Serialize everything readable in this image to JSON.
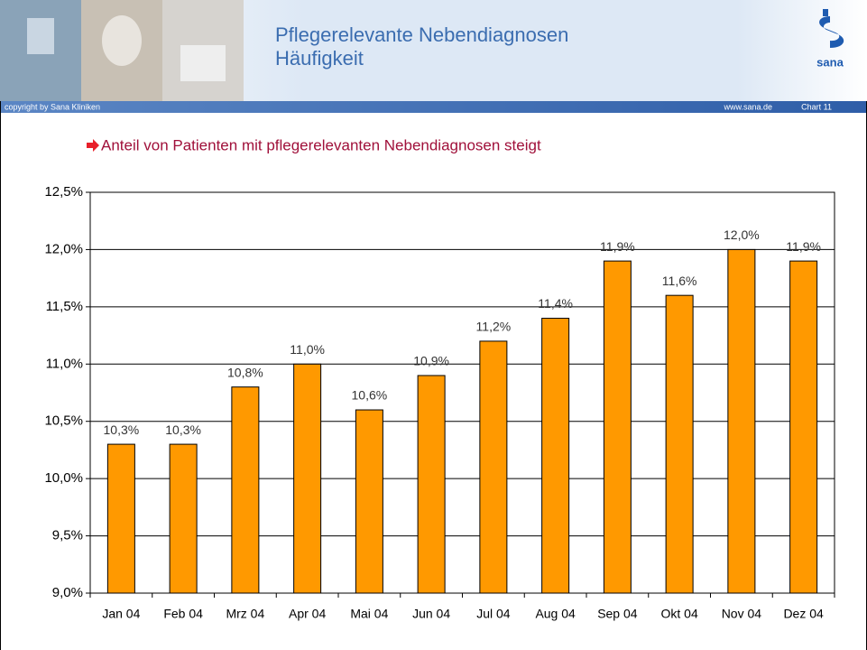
{
  "header": {
    "title": [
      "Pflegerelevante Nebendiagnosen",
      "Häufigkeit"
    ],
    "copyright": "copyright by Sana Kliniken",
    "url": "www.sana.de",
    "chart_number": "Chart 11",
    "logo_text": "sana"
  },
  "chart_data": {
    "type": "bar",
    "title": "Anteil von Patienten mit pflegerelevanten Nebendiagnosen steigt",
    "categories": [
      "Jan 04",
      "Feb 04",
      "Mrz 04",
      "Apr 04",
      "Mai 04",
      "Jun 04",
      "Jul 04",
      "Aug 04",
      "Sep 04",
      "Okt 04",
      "Nov 04",
      "Dez 04"
    ],
    "values": [
      10.3,
      10.3,
      10.8,
      11.0,
      10.6,
      10.9,
      11.2,
      11.4,
      11.9,
      11.6,
      12.0,
      11.9
    ],
    "value_labels": [
      "10,3%",
      "10,3%",
      "10,8%",
      "11,0%",
      "10,6%",
      "10,9%",
      "11,2%",
      "11,4%",
      "11,9%",
      "11,6%",
      "12,0%",
      "11,9%"
    ],
    "color": "#ff9900",
    "ylim": [
      9.0,
      12.5
    ],
    "yticks": [
      {
        "value": 9.0,
        "label": "9,0%"
      },
      {
        "value": 9.5,
        "label": "9,5%"
      },
      {
        "value": 10.0,
        "label": "10,0%"
      },
      {
        "value": 10.5,
        "label": "10,5%"
      },
      {
        "value": 11.0,
        "label": "11,0%"
      },
      {
        "value": 11.5,
        "label": "11,5%"
      },
      {
        "value": 12.0,
        "label": "12,0%"
      },
      {
        "value": 12.5,
        "label": "12,5%"
      }
    ],
    "grid": true
  }
}
